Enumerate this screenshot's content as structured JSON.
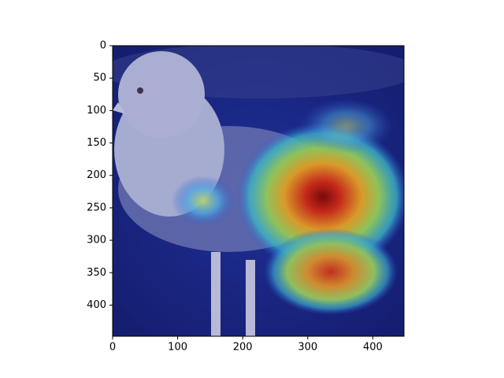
{
  "chart_data": {
    "type": "image",
    "xlim": [
      0,
      448
    ],
    "ylim": [
      448,
      0
    ],
    "xticks": [
      0,
      100,
      200,
      300,
      400
    ],
    "yticks": [
      0,
      50,
      100,
      150,
      200,
      250,
      300,
      350,
      400
    ]
  }
}
